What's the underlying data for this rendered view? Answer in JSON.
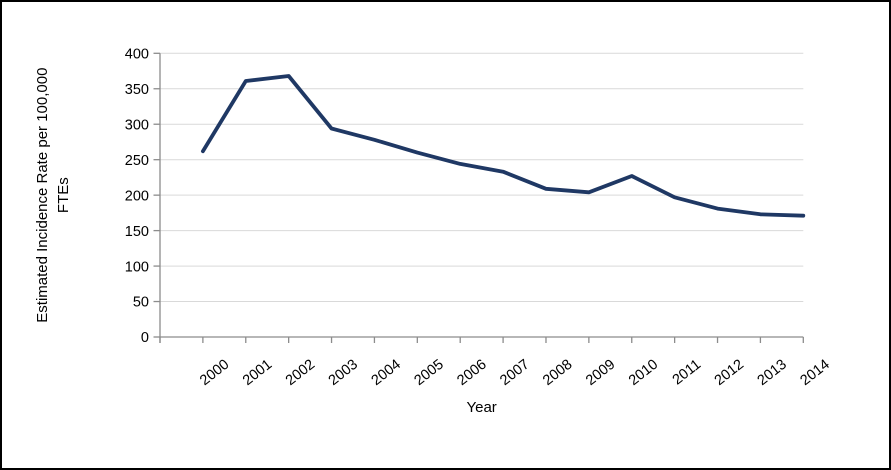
{
  "figure": {
    "background_color": "#FFFFFF",
    "border_color": "#000000"
  },
  "chart_data": {
    "type": "line",
    "title": "",
    "xlabel": "Year",
    "ylabel": "Estimated Incidence Rate per 100,000 FTEs",
    "ylabel_lines": [
      "Estimated Incidence Rate per 100,000",
      "FTEs"
    ],
    "categories": [
      "2000",
      "2001",
      "2002",
      "2003",
      "2004",
      "2005",
      "2006",
      "2007",
      "2008",
      "2009",
      "2010",
      "2011",
      "2012",
      "2013",
      "2014"
    ],
    "series": [
      {
        "name": "Estimated incidence rate",
        "values": [
          262,
          361,
          368,
          294,
          278,
          260,
          244,
          233,
          209,
          204,
          227,
          197,
          181,
          173,
          171
        ]
      }
    ],
    "ylim": [
      0,
      400
    ],
    "ytick_step": 50,
    "yticks": [
      0,
      50,
      100,
      150,
      200,
      250,
      300,
      350,
      400
    ],
    "grid": "horizontal",
    "legend": "none",
    "markers": "none",
    "line_color": "#1F3864",
    "axis_color": "#8C8C8C",
    "gridline_color": "#D9D9D9",
    "text_color": "#000000"
  }
}
